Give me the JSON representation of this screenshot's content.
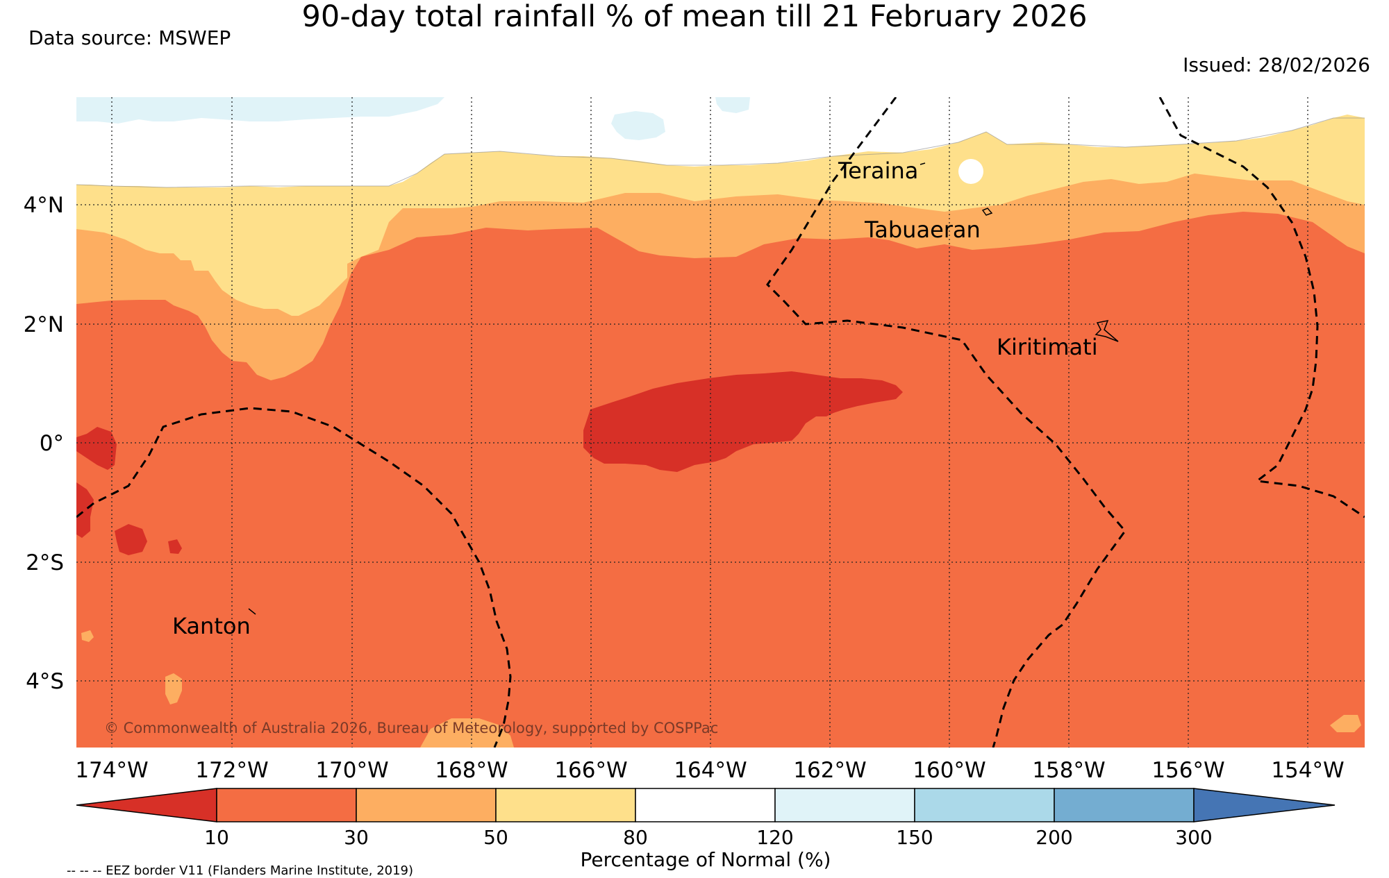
{
  "title": "90-day total rainfall % of mean till 21 February 2026",
  "data_source": "Data source: MSWEP",
  "issued": "Issued: 28/02/2026",
  "map": {
    "lon_ticks": [
      "174°W",
      "172°W",
      "170°W",
      "168°W",
      "166°W",
      "164°W",
      "162°W",
      "160°W",
      "158°W",
      "156°W",
      "154°W"
    ],
    "lat_ticks": [
      "4°N",
      "2°N",
      "0°",
      "2°S",
      "4°S"
    ],
    "places": {
      "teraina": "Teraina",
      "tabuaeran": "Tabuaeran",
      "kiritimati": "Kiritimati",
      "kanton": "Kanton"
    },
    "copyright": "© Commonwealth of Australia 2026, Bureau of Meteorology, supported by COSPPac"
  },
  "colorbar": {
    "label": "Percentage of Normal (%)",
    "ticks": [
      "10",
      "30",
      "50",
      "80",
      "120",
      "150",
      "200",
      "300"
    ],
    "colors": {
      "lt10": "#d73027",
      "10_30": "#f46d43",
      "30_50": "#fdae61",
      "50_80": "#fee08b",
      "80_120": "#ffffff",
      "120_150": "#e0f3f8",
      "150_200": "#abd9e9",
      "200_300": "#74add1",
      "gt300": "#4575b4"
    }
  },
  "eez_note": "-- -- -- EEZ border V11 (Flanders Marine Institute, 2019)"
}
